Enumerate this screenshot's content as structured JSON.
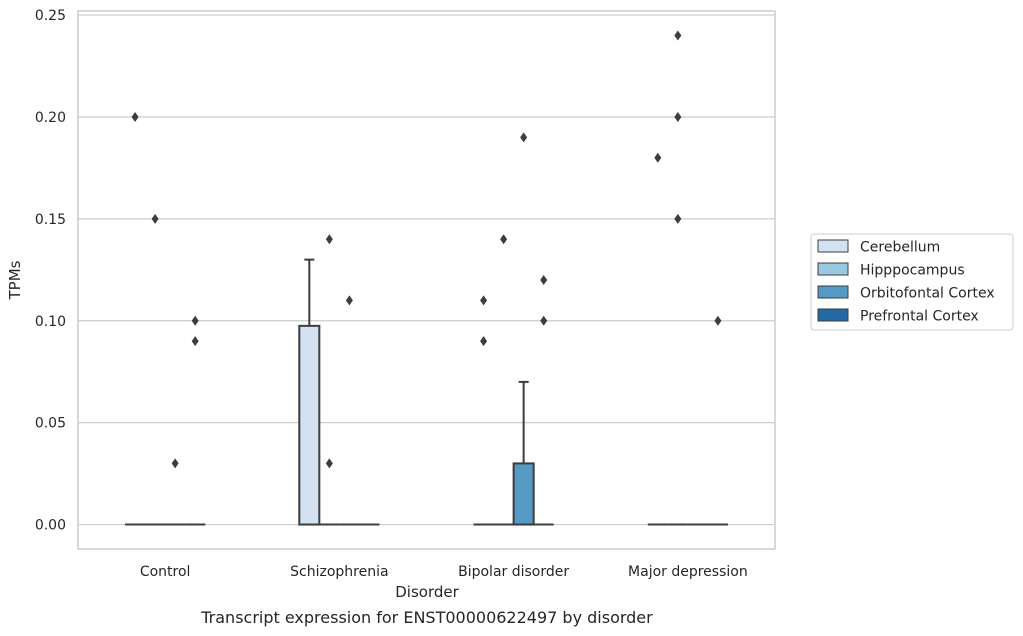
{
  "chart_data": {
    "type": "box",
    "caption": "Transcript expression for ENST00000622497 by disorder",
    "xlabel": "Disorder",
    "ylabel": "TPMs",
    "ylim": [
      -0.012,
      0.252
    ],
    "yticks": [
      0.0,
      0.05,
      0.1,
      0.15,
      0.2,
      0.25
    ],
    "ytick_labels": [
      "0.00",
      "0.05",
      "0.10",
      "0.15",
      "0.20",
      "0.25"
    ],
    "grid": "horizontal",
    "legend_position": "right",
    "categories": [
      "Control",
      "Schizophrenia",
      "Bipolar disorder",
      "Major depression"
    ],
    "series": [
      {
        "name": "Cerebellum",
        "color": "#d2e2f2",
        "boxes": [
          {
            "category": "Control",
            "q1": 0,
            "median": 0,
            "q3": 0,
            "whisker_low": 0,
            "whisker_high": 0,
            "outliers": [
              0.2
            ]
          },
          {
            "category": "Schizophrenia",
            "q1": 0,
            "median": 0,
            "q3": 0.0975,
            "whisker_low": 0,
            "whisker_high": 0.13,
            "outliers": []
          },
          {
            "category": "Bipolar disorder",
            "q1": 0,
            "median": 0,
            "q3": 0,
            "whisker_low": 0,
            "whisker_high": 0,
            "outliers": [
              0.11,
              0.09
            ]
          },
          {
            "category": "Major depression",
            "q1": 0,
            "median": 0,
            "q3": 0,
            "whisker_low": 0,
            "whisker_high": 0,
            "outliers": [
              0.18
            ]
          }
        ]
      },
      {
        "name": "Hipppocampus",
        "color": "#9ac8e0",
        "boxes": [
          {
            "category": "Control",
            "q1": 0,
            "median": 0,
            "q3": 0,
            "whisker_low": 0,
            "whisker_high": 0,
            "outliers": [
              0.15
            ]
          },
          {
            "category": "Schizophrenia",
            "q1": 0,
            "median": 0,
            "q3": 0,
            "whisker_low": 0,
            "whisker_high": 0,
            "outliers": [
              0.14,
              0.03
            ]
          },
          {
            "category": "Bipolar disorder",
            "q1": 0,
            "median": 0,
            "q3": 0,
            "whisker_low": 0,
            "whisker_high": 0,
            "outliers": [
              0.14
            ]
          },
          {
            "category": "Major depression",
            "q1": 0,
            "median": 0,
            "q3": 0,
            "whisker_low": 0,
            "whisker_high": 0,
            "outliers": [
              0.24,
              0.2,
              0.15
            ]
          }
        ]
      },
      {
        "name": "Orbitofontal Cortex",
        "color": "#5599c5",
        "boxes": [
          {
            "category": "Control",
            "q1": 0,
            "median": 0,
            "q3": 0,
            "whisker_low": 0,
            "whisker_high": 0,
            "outliers": [
              0.03
            ]
          },
          {
            "category": "Schizophrenia",
            "q1": 0,
            "median": 0,
            "q3": 0,
            "whisker_low": 0,
            "whisker_high": 0,
            "outliers": [
              0.11
            ]
          },
          {
            "category": "Bipolar disorder",
            "q1": 0,
            "median": 0,
            "q3": 0.03,
            "whisker_low": 0,
            "whisker_high": 0.07,
            "outliers": [
              0.19
            ]
          },
          {
            "category": "Major depression",
            "q1": 0,
            "median": 0,
            "q3": 0,
            "whisker_low": 0,
            "whisker_high": 0,
            "outliers": []
          }
        ]
      },
      {
        "name": "Prefrontal Cortex",
        "color": "#2369a6",
        "boxes": [
          {
            "category": "Control",
            "q1": 0,
            "median": 0,
            "q3": 0,
            "whisker_low": 0,
            "whisker_high": 0,
            "outliers": [
              0.1,
              0.09
            ]
          },
          {
            "category": "Schizophrenia",
            "q1": 0,
            "median": 0,
            "q3": 0,
            "whisker_low": 0,
            "whisker_high": 0,
            "outliers": []
          },
          {
            "category": "Bipolar disorder",
            "q1": 0,
            "median": 0,
            "q3": 0,
            "whisker_low": 0,
            "whisker_high": 0,
            "outliers": [
              0.12,
              0.1
            ]
          },
          {
            "category": "Major depression",
            "q1": 0,
            "median": 0,
            "q3": 0,
            "whisker_low": 0,
            "whisker_high": 0,
            "outliers": [
              0.1
            ]
          }
        ]
      }
    ]
  },
  "colors": {
    "grid": "#cccccc",
    "frame": "#cccccc",
    "box_edge": "#3d3d3d",
    "text": "#262626"
  }
}
